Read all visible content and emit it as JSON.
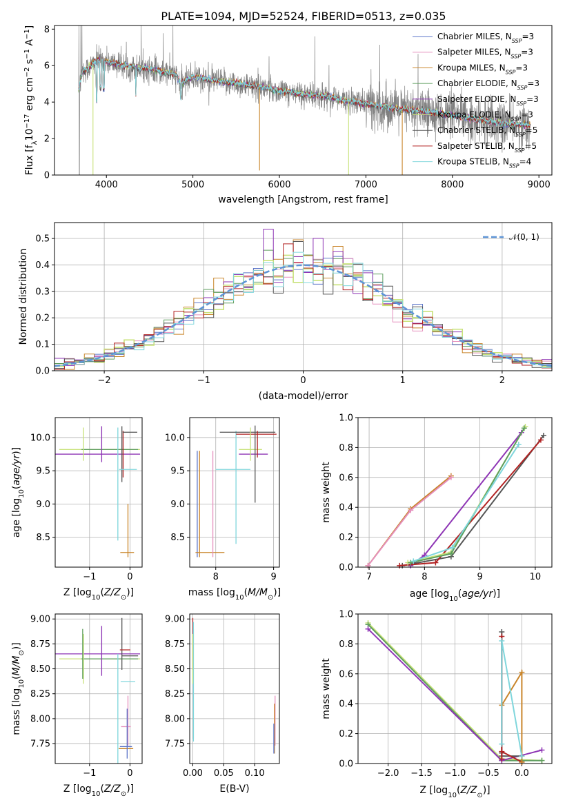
{
  "title": "PLATE=1094, MJD=52524, FIBERID=0513, z=0.035",
  "colors": {
    "Chabrier MILES": "#5b74c8",
    "Salpeter MILES": "#e58fbd",
    "Kroupa MILES": "#c9852a",
    "Chabrier ELODIE": "#5e9e5e",
    "Salpeter ELODIE": "#8e35b5",
    "Kroupa ELODIE": "#c8e27a",
    "Chabrier STELIB": "#555555",
    "Salpeter STELIB": "#b22222",
    "Kroupa STELIB": "#7fd6dc",
    "data": "#808080",
    "normal": "#5e95d6"
  },
  "chart_data": [
    {
      "id": "spectrum",
      "type": "line",
      "xlabel": "wavelength [Angstrom, rest frame]",
      "ylabel_parts": [
        "Flux [f",
        "λ",
        "10",
        "−17",
        " erg cm",
        "−2",
        " s",
        "−1",
        " A",
        "−1",
        "]"
      ],
      "xlim": [
        3400,
        9150
      ],
      "ylim": [
        0,
        8.2
      ],
      "xticks": [
        4000,
        5000,
        6000,
        7000,
        8000,
        9000
      ],
      "yticks": [
        0,
        2,
        4,
        6,
        8
      ],
      "legend": [
        {
          "name": "Chabrier MILES",
          "nssp": "3"
        },
        {
          "name": "Salpeter MILES",
          "nssp": "3"
        },
        {
          "name": "Kroupa MILES",
          "nssp": "3"
        },
        {
          "name": "Chabrier ELODIE",
          "nssp": "3"
        },
        {
          "name": "Salpeter ELODIE",
          "nssp": "3"
        },
        {
          "name": "Kroupa ELODIE",
          "nssp": "3"
        },
        {
          "name": "Chabrier STELIB",
          "nssp": "5"
        },
        {
          "name": "Salpeter STELIB",
          "nssp": "5"
        },
        {
          "name": "Kroupa STELIB",
          "nssp": "4"
        }
      ],
      "nssp_label": "N",
      "nssp_sub": "SSP",
      "model_continuum": {
        "x": [
          3680,
          3720,
          3800,
          3900,
          4000,
          4100,
          4200,
          4300,
          4500,
          4800,
          4860,
          5000,
          5200,
          5500,
          5800,
          6000,
          6300,
          6563,
          6700,
          7000,
          7400,
          7800,
          8200,
          8600,
          8900
        ],
        "y": [
          4.7,
          5.6,
          5.9,
          6.3,
          6.2,
          6.1,
          6.0,
          5.9,
          5.8,
          5.5,
          5.0,
          5.4,
          5.2,
          5.0,
          4.8,
          4.6,
          4.4,
          4.3,
          4.1,
          3.9,
          3.6,
          3.4,
          3.1,
          2.8,
          2.7
        ]
      },
      "data_noise": "high"
    },
    {
      "id": "residuals",
      "type": "histogram",
      "xlabel": "(data-model)/error",
      "ylabel": "Normed distribution",
      "xlim": [
        -2.5,
        2.5
      ],
      "ylim": [
        0,
        0.56
      ],
      "xticks": [
        -2,
        -1,
        0,
        1,
        2
      ],
      "yticks": [
        0.0,
        0.1,
        0.2,
        0.3,
        0.4,
        0.5
      ],
      "normal_label": "𝒩(0, 1)",
      "bin_width": 0.1
    },
    {
      "id": "age_vs_Z",
      "type": "errorbar",
      "xlabel": "Z [log10(Z/Z⊙)]",
      "ylabel": "age [log10(age/yr)]",
      "xlim": [
        -1.85,
        0.3
      ],
      "ylim": [
        8.05,
        10.3
      ],
      "xticks": [
        -1,
        0
      ],
      "yticks": [
        8.5,
        9.0,
        9.5,
        10.0
      ],
      "points": [
        {
          "c": "Kroupa ELODIE",
          "x": -0.75,
          "y": 9.82,
          "xe": 1.0,
          "ye": 0.0
        },
        {
          "c": "Chabrier ELODIE",
          "x": -0.5,
          "y": 9.82,
          "xe": 0.7,
          "ye": 0.0
        },
        {
          "c": "Salpeter ELODIE",
          "x": -0.8,
          "y": 9.75,
          "xe": 1.05,
          "ye": 0.0
        },
        {
          "c": "Kroupa ELODIE",
          "x": -1.15,
          "y": 9.9,
          "xe": 0.0,
          "ye": 0.25
        },
        {
          "c": "Salpeter ELODIE",
          "x": -0.7,
          "y": 9.9,
          "xe": 0.0,
          "ye": 0.27
        },
        {
          "c": "Chabrier STELIB",
          "x": -0.2,
          "y": 9.75,
          "xe": 0.0,
          "ye": 0.42
        },
        {
          "c": "Salpeter STELIB",
          "x": -0.17,
          "y": 9.75,
          "xe": 0.0,
          "ye": 0.35
        },
        {
          "c": "Chabrier STELIB",
          "x": 0.0,
          "y": 10.08,
          "xe": 0.18,
          "ye": 0.0
        },
        {
          "c": "Kroupa STELIB",
          "x": -0.3,
          "y": 9.3,
          "xe": 0.0,
          "ye": 0.85
        },
        {
          "c": "Kroupa STELIB",
          "x": -0.05,
          "y": 9.52,
          "xe": 0.22,
          "ye": 0.0
        },
        {
          "c": "Kroupa MILES",
          "x": -0.07,
          "y": 8.27,
          "xe": 0.17,
          "ye": 0.0
        },
        {
          "c": "Kroupa MILES",
          "x": -0.05,
          "y": 8.6,
          "xe": 0.0,
          "ye": 0.4
        }
      ]
    },
    {
      "id": "age_vs_mass",
      "type": "errorbar",
      "xlabel": "mass [log10(M/M⊙)]",
      "xlim": [
        7.55,
        9.1
      ],
      "ylim": [
        8.05,
        10.3
      ],
      "xticks": [
        8,
        9
      ],
      "yticks": [
        8.5,
        9.0,
        9.5,
        10.0
      ],
      "points": [
        {
          "c": "Chabrier MILES",
          "x": 7.68,
          "y": 9.0,
          "xe": 0.0,
          "ye": 0.8
        },
        {
          "c": "Kroupa MILES",
          "x": 7.72,
          "y": 9.0,
          "xe": 0.0,
          "ye": 0.8
        },
        {
          "c": "Kroupa MILES",
          "x": 7.9,
          "y": 8.27,
          "xe": 0.25,
          "ye": 0.0
        },
        {
          "c": "Salpeter MILES",
          "x": 7.95,
          "y": 9.0,
          "xe": 0.0,
          "ye": 0.8
        },
        {
          "c": "Kroupa STELIB",
          "x": 8.35,
          "y": 9.25,
          "xe": 0.0,
          "ye": 0.85
        },
        {
          "c": "Kroupa STELIB",
          "x": 8.3,
          "y": 9.52,
          "xe": 0.3,
          "ye": 0.0
        },
        {
          "c": "Kroupa ELODIE",
          "x": 8.6,
          "y": 9.82,
          "xe": 0.2,
          "ye": 0.0
        },
        {
          "c": "Salpeter ELODIE",
          "x": 8.65,
          "y": 9.75,
          "xe": 0.25,
          "ye": 0.0
        },
        {
          "c": "Chabrier STELIB",
          "x": 8.55,
          "y": 10.08,
          "xe": 0.48,
          "ye": 0.0
        },
        {
          "c": "Salpeter STELIB",
          "x": 8.7,
          "y": 10.05,
          "xe": 0.35,
          "ye": 0.0
        },
        {
          "c": "Chabrier STELIB",
          "x": 8.68,
          "y": 9.6,
          "xe": 0.0,
          "ye": 0.58
        },
        {
          "c": "Salpeter STELIB",
          "x": 8.72,
          "y": 9.9,
          "xe": 0.0,
          "ye": 0.2
        },
        {
          "c": "Kroupa ELODIE",
          "x": 8.6,
          "y": 9.9,
          "xe": 0.0,
          "ye": 0.25
        }
      ]
    },
    {
      "id": "mw_vs_age",
      "type": "line",
      "xlabel": "age [log10(age/yr)]",
      "ylabel": "mass weight",
      "xlim": [
        6.8,
        10.3
      ],
      "ylim": [
        0,
        1.0
      ],
      "xticks": [
        7,
        8,
        9,
        10
      ],
      "yticks": [
        0.0,
        0.2,
        0.4,
        0.6,
        0.8,
        1.0
      ],
      "series": [
        {
          "c": "Kroupa MILES",
          "x": [
            6.98,
            7.75,
            8.48
          ],
          "y": [
            0.01,
            0.39,
            0.61
          ]
        },
        {
          "c": "Salpeter MILES",
          "x": [
            6.98,
            7.75,
            8.48
          ],
          "y": [
            0.01,
            0.38,
            0.6
          ]
        },
        {
          "c": "Salpeter ELODIE",
          "x": [
            7.75,
            8.0,
            9.75
          ],
          "y": [
            0.01,
            0.08,
            0.9
          ]
        },
        {
          "c": "Chabrier STELIB",
          "x": [
            7.6,
            8.48,
            10.15
          ],
          "y": [
            0.01,
            0.07,
            0.88
          ]
        },
        {
          "c": "Salpeter STELIB",
          "x": [
            7.55,
            8.2,
            10.1
          ],
          "y": [
            0.01,
            0.03,
            0.85
          ]
        },
        {
          "c": "Kroupa ELODIE",
          "x": [
            7.7,
            8.48,
            9.82
          ],
          "y": [
            0.03,
            0.1,
            0.94
          ]
        },
        {
          "c": "Chabrier ELODIE",
          "x": [
            7.75,
            8.48,
            9.8
          ],
          "y": [
            0.03,
            0.09,
            0.93
          ]
        },
        {
          "c": "Kroupa STELIB",
          "x": [
            7.8,
            8.5,
            9.7
          ],
          "y": [
            0.04,
            0.13,
            0.82
          ]
        }
      ]
    },
    {
      "id": "mass_vs_Z",
      "type": "errorbar",
      "xlabel": "Z [log10(Z/Z⊙)]",
      "ylabel": "mass [log10(M/M⊙)]",
      "xlim": [
        -1.85,
        0.3
      ],
      "ylim": [
        7.55,
        9.05
      ],
      "xticks": [
        -1,
        0
      ],
      "yticks": [
        7.75,
        8.0,
        8.25,
        8.5,
        8.75,
        9.0
      ],
      "points": [
        {
          "c": "Salpeter ELODIE",
          "x": -0.8,
          "y": 8.65,
          "xe": 1.05,
          "ye": 0.0
        },
        {
          "c": "Kroupa ELODIE",
          "x": -0.75,
          "y": 8.6,
          "xe": 1.0,
          "ye": 0.0
        },
        {
          "c": "Chabrier ELODIE",
          "x": -0.5,
          "y": 8.6,
          "xe": 0.7,
          "ye": 0.0
        },
        {
          "c": "Kroupa ELODIE",
          "x": -1.15,
          "y": 8.6,
          "xe": 0.0,
          "ye": 0.25
        },
        {
          "c": "Chabrier ELODIE",
          "x": -1.17,
          "y": 8.65,
          "xe": 0.0,
          "ye": 0.25
        },
        {
          "c": "Salpeter ELODIE",
          "x": -0.7,
          "y": 8.68,
          "xe": 0.0,
          "ye": 0.25
        },
        {
          "c": "Chabrier STELIB",
          "x": -0.2,
          "y": 8.75,
          "xe": 0.0,
          "ye": 0.26
        },
        {
          "c": "Salpeter STELIB",
          "x": -0.12,
          "y": 8.69,
          "xe": 0.13,
          "ye": 0.0
        },
        {
          "c": "Chabrier STELIB",
          "x": 0.0,
          "y": 8.63,
          "xe": 0.2,
          "ye": 0.0
        },
        {
          "c": "Kroupa STELIB",
          "x": -0.3,
          "y": 8.05,
          "xe": 0.0,
          "ye": 0.6
        },
        {
          "c": "Kroupa STELIB",
          "x": -0.05,
          "y": 8.37,
          "xe": 0.18,
          "ye": 0.0
        },
        {
          "c": "Salpeter MILES",
          "x": -0.1,
          "y": 7.92,
          "xe": 0.12,
          "ye": 0.0
        },
        {
          "c": "Salpeter MILES",
          "x": -0.05,
          "y": 7.98,
          "xe": 0.0,
          "ye": 0.25
        },
        {
          "c": "Chabrier MILES",
          "x": -0.1,
          "y": 7.72,
          "xe": 0.15,
          "ye": 0.0
        },
        {
          "c": "Kroupa MILES",
          "x": -0.1,
          "y": 7.7,
          "xe": 0.18,
          "ye": 0.0
        },
        {
          "c": "Chabrier MILES",
          "x": -0.07,
          "y": 7.85,
          "xe": 0.0,
          "ye": 0.25
        }
      ]
    },
    {
      "id": "mass_vs_ebv",
      "type": "errorbar",
      "xlabel": "E(B-V)",
      "xlim": [
        -0.005,
        0.14
      ],
      "ylim": [
        7.55,
        9.05
      ],
      "xticks": [
        0.0,
        0.05,
        0.1
      ],
      "xtick_labels": [
        "0.00",
        "0.05",
        "0.10"
      ],
      "yticks": [
        7.75,
        8.0,
        8.25,
        8.5,
        8.75,
        9.0
      ],
      "points": [
        {
          "c": "Salpeter STELIB",
          "x": 0.0,
          "y": 8.75,
          "xe": 0.0,
          "ye": 0.26
        },
        {
          "c": "Chabrier STELIB",
          "x": 0.001,
          "y": 8.35,
          "xe": 0.0,
          "ye": 0.55
        },
        {
          "c": "Kroupa STELIB",
          "x": 0.001,
          "y": 8.37,
          "xe": 0.0,
          "ye": 0.6
        },
        {
          "c": "Kroupa ELODIE",
          "x": 0.0,
          "y": 8.6,
          "xe": 0.0,
          "ye": 0.25
        },
        {
          "c": "Salpeter MILES",
          "x": 0.133,
          "y": 7.98,
          "xe": 0.0,
          "ye": 0.25
        },
        {
          "c": "Kroupa MILES",
          "x": 0.132,
          "y": 7.9,
          "xe": 0.0,
          "ye": 0.25
        },
        {
          "c": "Chabrier MILES",
          "x": 0.131,
          "y": 7.8,
          "xe": 0.0,
          "ye": 0.15
        }
      ]
    },
    {
      "id": "mw_vs_Z",
      "type": "line",
      "xlabel": "Z [log10(Z/Z⊙)]",
      "ylabel": "mass weight",
      "xlim": [
        -2.45,
        0.45
      ],
      "ylim": [
        0,
        1.0
      ],
      "xticks": [
        -2.0,
        -1.5,
        -1.0,
        -0.5,
        0.0
      ],
      "xtick_labels": [
        "−2.0",
        "−1.5",
        "−1.0",
        "−0.5",
        "0.0"
      ],
      "yticks": [
        0.0,
        0.2,
        0.4,
        0.6,
        0.8,
        1.0
      ],
      "series": [
        {
          "c": "Kroupa ELODIE",
          "x": [
            -2.3,
            -0.3,
            0.3
          ],
          "y": [
            0.94,
            0.03,
            0.02
          ]
        },
        {
          "c": "Chabrier ELODIE",
          "x": [
            -2.3,
            -0.3,
            0.3
          ],
          "y": [
            0.93,
            0.02,
            0.02
          ]
        },
        {
          "c": "Salpeter ELODIE",
          "x": [
            -2.3,
            -0.3,
            0.3
          ],
          "y": [
            0.9,
            0.02,
            0.09
          ]
        },
        {
          "c": "Chabrier STELIB",
          "x": [
            -0.3,
            -0.3,
            -0.3,
            0.0,
            0.0
          ],
          "y": [
            0.07,
            0.88,
            0.05,
            0.05,
            0.01
          ]
        },
        {
          "c": "Salpeter STELIB",
          "x": [
            -0.3,
            -0.3,
            -0.3,
            0.0
          ],
          "y": [
            0.03,
            0.85,
            0.08,
            0.01
          ]
        },
        {
          "c": "Kroupa MILES",
          "x": [
            -0.3,
            0.0,
            0.0
          ],
          "y": [
            0.39,
            0.61,
            0.01
          ]
        },
        {
          "c": "Kroupa STELIB",
          "x": [
            -0.3,
            -0.3,
            0.0
          ],
          "y": [
            0.13,
            0.82,
            0.05
          ]
        }
      ]
    }
  ]
}
